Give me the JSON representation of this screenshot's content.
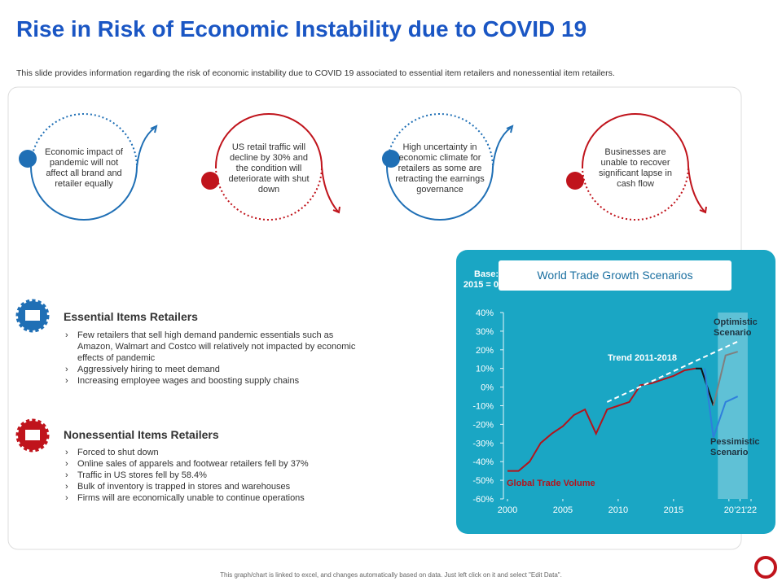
{
  "title": "Rise in Risk of Economic Instability due to COVID 19",
  "subtitle": "This slide provides information regarding the risk of economic instability due to COVID 19 associated to essential item retailers and nonessential item retailers.",
  "cards": [
    "Economic impact of pandemic will not affect all brand and retailer equally",
    "US retail traffic will decline by 30% and the condition will deteriorate with shut down",
    "High uncertainty in economic climate for retailers as some are retracting the earnings governance",
    "Businesses are unable to recover significant lapse in cash flow"
  ],
  "sections": [
    {
      "heading": "Essential Items Retailers",
      "items": [
        "Few retailers that sell high demand pandemic essentials such as Amazon, Walmart and Costco will relatively not impacted by economic effects of pandemic",
        "Aggressively hiring to meet demand",
        "Increasing employee wages and boosting supply chains"
      ]
    },
    {
      "heading": "Nonessential Items Retailers",
      "items": [
        "Forced to shut down",
        "Online sales of apparels and footwear retailers fell by 37%",
        "Traffic in US stores fell by 58.4%",
        "Bulk of inventory is trapped in stores and warehouses",
        "Firms will are economically unable to continue operations"
      ]
    }
  ],
  "chart_data": {
    "type": "line",
    "title": "World Trade Growth Scenarios",
    "base_note": "Base: 2015 = 0",
    "xlim": [
      2000,
      2022
    ],
    "xticks": [
      2000,
      2005,
      2010,
      2015,
      {
        "value": 2020,
        "label": "20"
      },
      {
        "value": 2021,
        "label": "'21"
      },
      {
        "value": 2022,
        "label": "'22"
      }
    ],
    "ylim": [
      -60,
      40
    ],
    "yticks": [
      {
        "value": 40,
        "label": "40%"
      },
      {
        "value": 30,
        "label": "30%"
      },
      {
        "value": 20,
        "label": "20%"
      },
      {
        "value": 10,
        "label": "10%"
      },
      {
        "value": 0,
        "label": "0%"
      },
      {
        "value": -10,
        "label": "-10%"
      },
      {
        "value": -20,
        "label": "-20%"
      },
      {
        "value": -30,
        "label": "-30%"
      },
      {
        "value": -40,
        "label": "-40%"
      },
      {
        "value": -50,
        "label": "-50%"
      },
      {
        "value": -60,
        "label": "-60%"
      }
    ],
    "highlight": [
      2019,
      2021.7
    ],
    "series": [
      {
        "name": "Global Trade Volume",
        "color": "#b3141c",
        "x": [
          2000,
          2001,
          2002,
          2003,
          2004,
          2005,
          2006,
          2007,
          2008,
          2009,
          2010,
          2011,
          2012,
          2013,
          2014,
          2015,
          2016,
          2017
        ],
        "values": [
          -45,
          -45,
          -40,
          -30,
          -25,
          -21,
          -15,
          -12,
          -25,
          -12,
          -10,
          -8,
          1,
          2,
          4,
          6,
          9,
          10
        ]
      },
      {
        "color": "#111111",
        "x": [
          2017,
          2017.5,
          2018.6
        ],
        "values": [
          10,
          10,
          -10
        ]
      },
      {
        "name": "Optimistic Scenario",
        "color": "#7f7f7f",
        "x": [
          2018.6,
          2019.7,
          2020.8
        ],
        "values": [
          -10,
          17,
          19
        ]
      },
      {
        "name": "Pessimistic Scenario",
        "color": "#2f7fdc",
        "x": [
          2017.8,
          2018.6,
          2019.7,
          2020.8
        ],
        "values": [
          10,
          -27,
          -8,
          -5
        ]
      },
      {
        "name": "Trend 2011-2018",
        "color": "#ffffff",
        "dashed": true,
        "x": [
          2009,
          2021
        ],
        "values": [
          -8,
          25
        ]
      }
    ]
  },
  "footer": "This graph/chart is linked to excel, and changes automatically based on data. Just left click on it and select \"Edit Data\"."
}
